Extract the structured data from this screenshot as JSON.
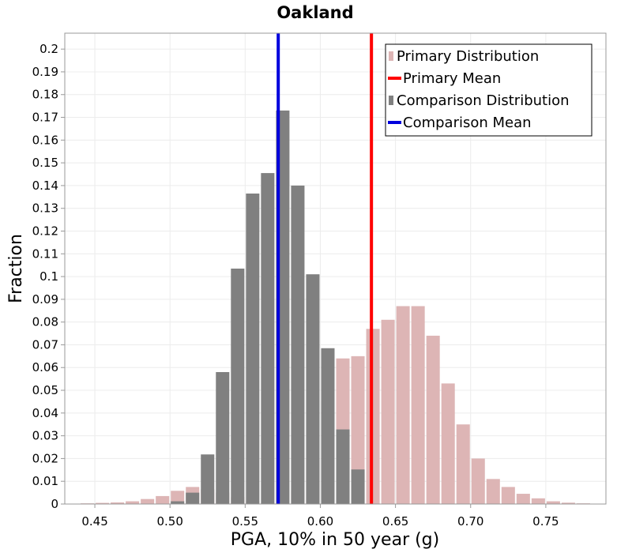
{
  "chart_data": {
    "type": "bar",
    "title": "Oakland",
    "xlabel": "PGA, 10% in 50 year (g)",
    "ylabel": "Fraction",
    "xlim": [
      0.43,
      0.79
    ],
    "ylim": [
      0,
      0.207
    ],
    "xticks": [
      "0.45",
      "0.50",
      "0.55",
      "0.60",
      "0.65",
      "0.70",
      "0.75"
    ],
    "yticks": [
      "0",
      "0.01",
      "0.02",
      "0.03",
      "0.04",
      "0.05",
      "0.06",
      "0.07",
      "0.08",
      "0.09",
      "0.1",
      "0.11",
      "0.12",
      "0.13",
      "0.14",
      "0.15",
      "0.16",
      "0.17",
      "0.18",
      "0.19",
      "0.2"
    ],
    "bin_width": 0.01,
    "grid": true,
    "legend_position": "top-right",
    "series": [
      {
        "name": "Primary Distribution",
        "kind": "histogram",
        "color": "#ddb5b5",
        "x": [
          0.44,
          0.45,
          0.46,
          0.47,
          0.48,
          0.49,
          0.5,
          0.51,
          0.52,
          0.53,
          0.54,
          0.55,
          0.56,
          0.57,
          0.58,
          0.59,
          0.6,
          0.61,
          0.62,
          0.63,
          0.64,
          0.65,
          0.66,
          0.67,
          0.68,
          0.69,
          0.7,
          0.71,
          0.72,
          0.73,
          0.74,
          0.75,
          0.76,
          0.77,
          0.78
        ],
        "values": [
          0.0003,
          0.0005,
          0.0007,
          0.0012,
          0.0022,
          0.0035,
          0.0058,
          0.0075,
          0.0065,
          0.005,
          0.003,
          0.0012,
          0.0008,
          0.0005,
          0.006,
          0.02,
          0.045,
          0.064,
          0.065,
          0.077,
          0.081,
          0.087,
          0.087,
          0.074,
          0.053,
          0.035,
          0.02,
          0.011,
          0.0075,
          0.0045,
          0.0025,
          0.0012,
          0.0006,
          0.0003,
          0.0001
        ]
      },
      {
        "name": "Primary Mean",
        "kind": "vline",
        "color": "#ff0000",
        "x": 0.634
      },
      {
        "name": "Comparison Distribution",
        "kind": "histogram",
        "color": "#808080",
        "x": [
          0.5,
          0.51,
          0.52,
          0.53,
          0.54,
          0.55,
          0.56,
          0.57,
          0.58,
          0.59,
          0.6,
          0.61,
          0.62
        ],
        "values": [
          0.0012,
          0.005,
          0.0218,
          0.058,
          0.1035,
          0.1365,
          0.1455,
          0.173,
          0.14,
          0.101,
          0.0685,
          0.0328,
          0.0152
        ]
      },
      {
        "name": "Comparison Mean",
        "kind": "vline",
        "color": "#0000dd",
        "x": 0.572
      }
    ]
  }
}
